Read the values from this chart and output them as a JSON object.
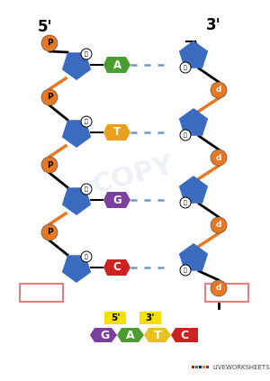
{
  "background_color": "#ffffff",
  "title_5prime": "5'",
  "title_3prime": "3'",
  "phosphate_color": "#e87722",
  "phosphate_label": "P",
  "deoxyribose_color": "#3a6bbf",
  "base_labels": [
    "A",
    "T",
    "G",
    "C"
  ],
  "base_colors": [
    "#4a9e2f",
    "#e8a020",
    "#7b3fa0",
    "#cc2222"
  ],
  "dash_color": "#6699cc",
  "right_d_label": "d",
  "answer_box_labels": [
    "G",
    "A",
    "T",
    "C"
  ],
  "answer_box_colors": [
    "#7b3fa0",
    "#4a9e2f",
    "#e8c020",
    "#cc2222"
  ],
  "liveworksheets_text": "LIVEWORKSHEETS",
  "lw_colors": [
    "#e00000",
    "#00aa00",
    "#0000dd",
    "#ee8800",
    "#aa00aa"
  ]
}
